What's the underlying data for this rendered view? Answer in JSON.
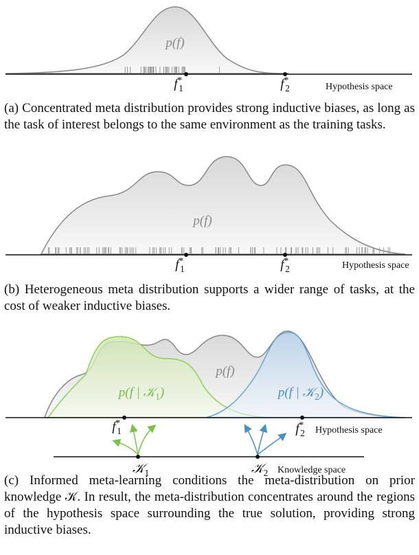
{
  "panels": [
    {
      "density": "p(f)",
      "points": [
        {
          "base": "f",
          "sub": "1",
          "sup": "*"
        },
        {
          "base": "f",
          "sub": "2",
          "sup": "*"
        }
      ],
      "axis_label": "Hypothesis space",
      "caption": "(a) Concentrated meta distribution provides strong inductive biases, as long as the task of interest belongs to the same environment as the training tasks."
    },
    {
      "density": "p(f)",
      "points": [
        {
          "base": "f",
          "sub": "1",
          "sup": "*"
        },
        {
          "base": "f",
          "sub": "2",
          "sup": "*"
        }
      ],
      "axis_label": "Hypothesis space",
      "caption": "(b) Heterogeneous meta distribution supports a wider range of tasks, at the cost of weaker inductive biases."
    },
    {
      "density": "p(f)",
      "conditionals": [
        {
          "pre": "p(f | ",
          "base": "𝒦",
          "sub": "1",
          "post": ")"
        },
        {
          "pre": "p(f | ",
          "base": "𝒦",
          "sub": "2",
          "post": ")"
        }
      ],
      "points": [
        {
          "base": "f",
          "sub": "1",
          "sup": "*"
        },
        {
          "base": "f",
          "sub": "2",
          "sup": "*"
        }
      ],
      "axis_label": "Hypothesis space",
      "knowledge": [
        {
          "base": "𝒦",
          "sub": "1"
        },
        {
          "base": "𝒦",
          "sub": "2"
        }
      ],
      "knowledge_label": "Knowledge space",
      "caption": "(c) Informed meta-learning conditions the meta-distribution on prior knowledge 𝒦. In result, the meta-distribution concentrates around the regions of the hypothesis space surrounding the true solution, providing strong inductive biases."
    }
  ]
}
